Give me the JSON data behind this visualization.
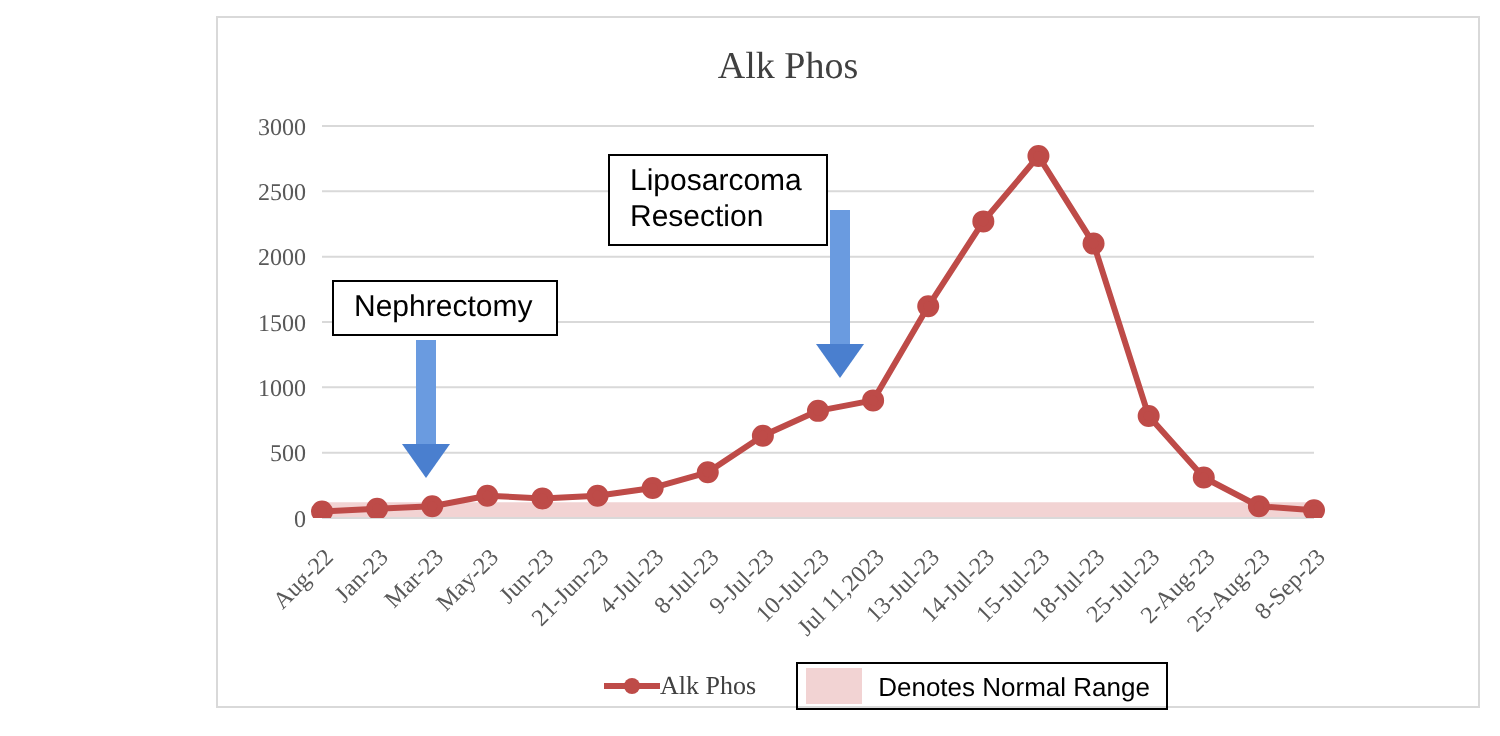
{
  "chart_data": {
    "type": "line",
    "title": "Alk Phos",
    "categories": [
      "Aug-22",
      "Jan-23",
      "Mar-23",
      "May-23",
      "Jun-23",
      "21-Jun-23",
      "4-Jul-23",
      "8-Jul-23",
      "9-Jul-23",
      "10-Jul-23",
      "Jul 11,2023",
      "13-Jul-23",
      "14-Jul-23",
      "15-Jul-23",
      "18-Jul-23",
      "25-Jul-23",
      "2-Aug-23",
      "25-Aug-23",
      "8-Sep-23"
    ],
    "series": [
      {
        "name": "Alk Phos",
        "color": "#be4b48",
        "values": [
          50,
          70,
          90,
          170,
          150,
          170,
          230,
          350,
          630,
          820,
          900,
          1620,
          2270,
          2770,
          2100,
          780,
          310,
          90,
          60
        ]
      }
    ],
    "ylim": [
      0,
      3000
    ],
    "yticks": [
      0,
      500,
      1000,
      1500,
      2000,
      2500,
      3000
    ],
    "grid": "y",
    "marker": "circle",
    "line_style": "solid",
    "legend": "bottom",
    "bands": [
      {
        "axis": "y",
        "from": 0,
        "to": 120,
        "label": "Denotes Normal Range",
        "color": "#f2d3d3"
      }
    ],
    "annotations": [
      "Nephrectomy",
      "Liposarcoma\nResection"
    ]
  }
}
